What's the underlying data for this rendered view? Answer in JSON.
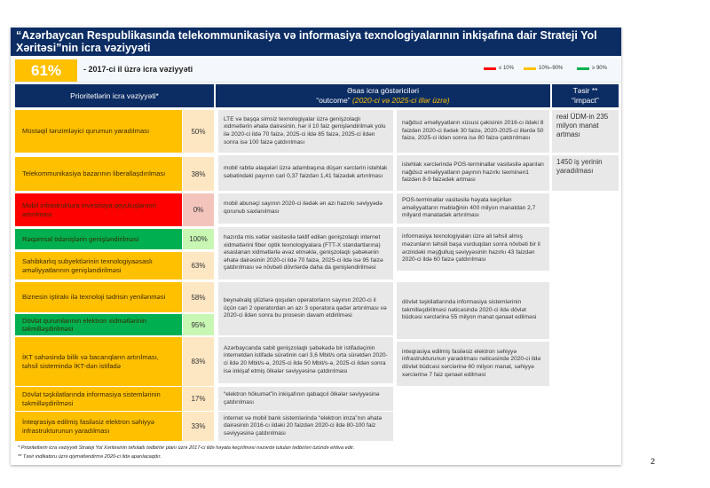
{
  "title": "“Azərbaycan Respublikasında telekommunikasiya və informasiya texnologiyalarının inkişafına dair Strateji Yol Xəritəsi”nin icra vəziyyəti",
  "summary": {
    "percent": "61%",
    "label": "- 2017-ci il üzrə icra vəziyyəti"
  },
  "legend": [
    {
      "label": "≤ 10%",
      "color": "#ff0000"
    },
    {
      "label": "10%–90%",
      "color": "#ffc000"
    },
    {
      "label": "≥ 90%",
      "color": "#00b050"
    }
  ],
  "headers": {
    "priorities": "Prioritetlərin icra vəziyyəti*",
    "outcome_line1": "Əsas icra göstəriciləri",
    "outcome_line2": "“outcome”",
    "outcome_italic": "(2020-ci və 2025-ci illər üzrə)",
    "impact_line1": "Təsir **",
    "impact_line2": "“impact”"
  },
  "priorities": [
    {
      "label": "Müstəqil tənzimləyici qurumun yaradılması",
      "percent": "50%",
      "status": "orange"
    },
    {
      "label": "Telekommunikasiya bazarının liberallaşdırılması",
      "percent": "38%",
      "status": "orange"
    },
    {
      "label": "Mobil infrastruktura investisiya qoyuluşlarının artırılması",
      "percent": "0%",
      "status": "red"
    },
    {
      "label": "Rəqəmsal ödənişlərin genişləndirilməsi",
      "percent": "100%",
      "status": "green"
    },
    {
      "label": "Sahibkarlıq subyektlərinin texnologiyaəsaslı əməliyyatlarının genişləndirilməsi",
      "percent": "63%",
      "status": "orange"
    },
    {
      "label": "Biznesin iştirakı ilə texnoloji tədrisin yenilənməsi",
      "percent": "58%",
      "status": "orange"
    },
    {
      "label": "Dövlət qurumlarının elektron xidmətlərinin təkmilləşdirilməsi",
      "percent": "95%",
      "status": "green"
    },
    {
      "label": "İKT sahəsində bilik və bacarıqların artırılması, təhsil sistemində İKT-dən istifadə",
      "percent": "83%",
      "status": "orange"
    },
    {
      "label": "Dövlət təşkilatlarında informasiya sistemlərinin təkmilləşdirilməsi",
      "percent": "17%",
      "status": "orange"
    },
    {
      "label": "İnteqrasiya edilmiş fasiləsiz elektron səhiyyə infrastrukturunun yaradılması",
      "percent": "33%",
      "status": "orange"
    }
  ],
  "outcomes_col1": [
    "LTE və başqa simsiz texnologiyalar üzrə genişzolaqlı xidmətlərin əhatə dairəsinin, hər il 10 faiz genişləndirilmək yolu ilə 2020-ci ildə 70 faizə, 2025-ci ildə 85 faizə, 2025-ci ildən sonra isə 100 faizə çatdırılması",
    "mobil rabitə əlaqələri üzrə adambaşına düşən xərclərin istehlak səbətindəki payının cari 0,37 faizdən 1,41 faizədək artırılması",
    "mobil abunəçi sayının 2020-ci ilədək ən azı hazırkı səviyyədə qorunub saxlanılması",
    "hazırda mis xətlər vasitəsilə təklif edilən genişzolaqlı internet xidmətlərini fiber optik texnologiyalara (FTT-X standartlarına) əsaslanan xidmətlərlə əvəz etməklə, genişzolaqlı şəbəkənin əhatə dairəsinin 2020-ci ildə 70 faizə, 2025-ci ildə isə 95 faizə çatdırılması və növbəti dövrlərdə daha da genişləndirilməsi",
    "beynəlxalq şlüzlərə qoşulan operatorların sayının 2020-ci il üçün cari 2 operatordan ən azı 3 operatora qədər artırılması və 2020-ci ildən sonra bu prosesin davam etdirilməsi",
    "Azərbaycanda sabit genişzolaqlı şəbəkədə bir istifadəçinin internetdən istifadə sürətinin cari 3,6 Mbit/s orta sürətdən 2020-ci ildə 20 Mbit/s-ə, 2025-ci ildə 50 Mbit/s-ə, 2025-ci ildən sonra isə inkişaf etmiş ölkələr səviyyəsinə çatdırılması",
    "“elektron hökumət”in inkişafının qabaqcıl ölkələr səviyyəsinə çatdırılması",
    "internet və mobil bank sistemlərində “elektron imza”nın əhatə dairəsinin 2016-cı ildəki 20 faizdən 2020-ci ildə 80-100 faiz səviyyəsinə çatdırılması"
  ],
  "outcomes_col2": [
    "nağdsız əməliyyatların xüsusi çəkisinin 2016-cı ildəki 8 faizdən 2020-ci ilədək 30 faizə, 2020-2025-ci illərdə 50 faizə, 2025-ci ildən sonra isə 80 faizə çatdırılması",
    "istehlak xərclərində POS-terminallar vasitəsilə aparılan nağdsız əməliyyatların payının hazırkı təxminən1 faizdən 8-9 faizədək artması",
    "POS-terminallar vasitəsilə həyata keçirilən əməliyyatların məbləğinin 400 milyon manatdan 2,7 milyard manatadək artırılması",
    "informasiya texnologiyaları üzrə ali təhsil almış məzunların təhsili başa vurduqdan sonra növbəti bir il ərzindəki məşğulluq səviyyəsinin hazırkı 43 faizdən 2020-ci ildə 60 faizə çatdırılması",
    "dövlət təşkilatlarında informasiya sistemlərinin təkmilləşdirilməsi nəticəsində 2020-ci ildə dövlət büdcəsi xərclərinə 55 milyon manat qənaət edilməsi",
    "inteqrasiya edilmiş fasiləsiz elektron səhiyyə infrastrukturunun yaradılması nəticəsində 2020-ci ildə dövlət büdcəsi xərclərinə 60 milyon manat, səhiyyə xərclərinə 7 faiz qənaət edilməsi"
  ],
  "impacts": [
    "real ÜDM-in 235 milyon manat artması",
    "1450 iş yerinin yaradılması"
  ],
  "footnotes": [
    "* Prioritetlərin icra vəziyyəti Strateji Yol Xəritəsinin təfsilatlı tədbirlər planı üzrə 2017-ci ildə həyata keçirilməsi nəzərdə tutulan tədbirləri özündə ehtiva edir.",
    "** Təsir indikatoru üzrə qiymətləndirmə 2020-ci ildə aparılacaqdır."
  ],
  "page_number": "2",
  "status_colors": {
    "orange": {
      "main": "#ffc000",
      "light": "#fde7c2"
    },
    "red": {
      "main": "#ff0000",
      "light": "#f2c4bb"
    },
    "green": {
      "main": "#00b050",
      "light": "#c8f7b4"
    }
  }
}
